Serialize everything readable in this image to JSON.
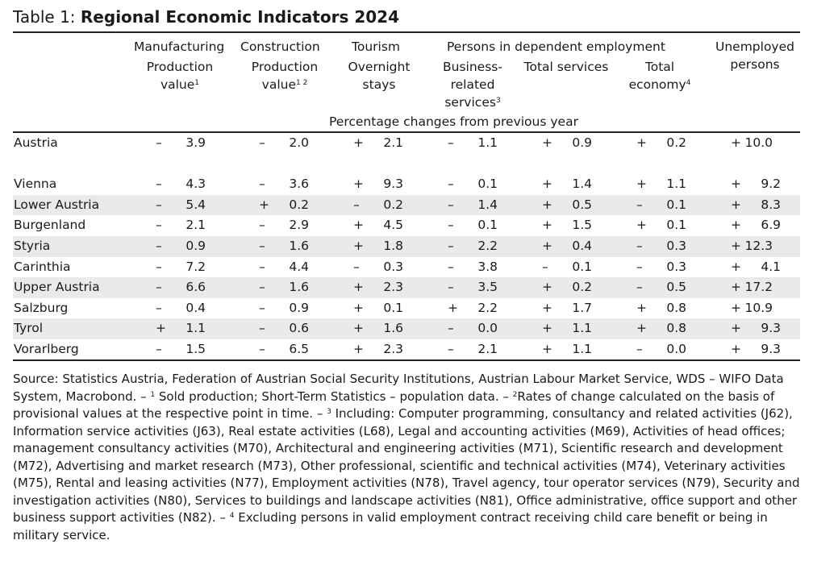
{
  "title": {
    "prefix": "Table 1: ",
    "main": "Regional Economic Indicators 2024"
  },
  "headers": {
    "manufacturing": {
      "group": "Manufacturing",
      "line1": "Production",
      "line2": "value",
      "sup": "1"
    },
    "construction": {
      "group": "Construction",
      "line1": "Production",
      "line2": "value",
      "sup": "1 2"
    },
    "tourism": {
      "group": "Tourism",
      "line1": "Overnight",
      "line2": "stays"
    },
    "employment_group": "Persons in dependent employment",
    "business": {
      "line1": "Business-",
      "line2": "related",
      "line3": "services",
      "sup": "3"
    },
    "total_services": "Total services",
    "total_economy": {
      "line1": "Total",
      "line2": "economy",
      "sup": "4"
    },
    "unemployed": {
      "line1": "Unemployed",
      "line2": "persons"
    },
    "unit": "Percentage changes from previous year"
  },
  "rows": [
    {
      "region": "Austria",
      "values": [
        [
          "–",
          "3.9"
        ],
        [
          "–",
          "2.0"
        ],
        [
          "+",
          "2.1"
        ],
        [
          "–",
          "1.1"
        ],
        [
          "+",
          "0.9"
        ],
        [
          "+",
          "0.2"
        ],
        [
          "+",
          "10.0"
        ]
      ]
    },
    {
      "region": "Vienna",
      "values": [
        [
          "–",
          "4.3"
        ],
        [
          "–",
          "3.6"
        ],
        [
          "+",
          "9.3"
        ],
        [
          "–",
          "0.1"
        ],
        [
          "+",
          "1.4"
        ],
        [
          "+",
          "1.1"
        ],
        [
          "+",
          "9.2"
        ]
      ]
    },
    {
      "region": "Lower Austria",
      "values": [
        [
          "–",
          "5.4"
        ],
        [
          "+",
          "0.2"
        ],
        [
          "–",
          "0.2"
        ],
        [
          "–",
          "1.4"
        ],
        [
          "+",
          "0.5"
        ],
        [
          "–",
          "0.1"
        ],
        [
          "+",
          "8.3"
        ]
      ]
    },
    {
      "region": "Burgenland",
      "values": [
        [
          "–",
          "2.1"
        ],
        [
          "–",
          "2.9"
        ],
        [
          "+",
          "4.5"
        ],
        [
          "–",
          "0.1"
        ],
        [
          "+",
          "1.5"
        ],
        [
          "+",
          "0.1"
        ],
        [
          "+",
          "6.9"
        ]
      ]
    },
    {
      "region": "Styria",
      "values": [
        [
          "–",
          "0.9"
        ],
        [
          "–",
          "1.6"
        ],
        [
          "+",
          "1.8"
        ],
        [
          "–",
          "2.2"
        ],
        [
          "+",
          "0.4"
        ],
        [
          "–",
          "0.3"
        ],
        [
          "+",
          "12.3"
        ]
      ]
    },
    {
      "region": "Carinthia",
      "values": [
        [
          "–",
          "7.2"
        ],
        [
          "–",
          "4.4"
        ],
        [
          "–",
          "0.3"
        ],
        [
          "–",
          "3.8"
        ],
        [
          "–",
          "0.1"
        ],
        [
          "–",
          "0.3"
        ],
        [
          "+",
          "4.1"
        ]
      ]
    },
    {
      "region": "Upper Austria",
      "values": [
        [
          "–",
          "6.6"
        ],
        [
          "–",
          "1.6"
        ],
        [
          "+",
          "2.3"
        ],
        [
          "–",
          "3.5"
        ],
        [
          "+",
          "0.2"
        ],
        [
          "–",
          "0.5"
        ],
        [
          "+",
          "17.2"
        ]
      ]
    },
    {
      "region": "Salzburg",
      "values": [
        [
          "–",
          "0.4"
        ],
        [
          "–",
          "0.9"
        ],
        [
          "+",
          "0.1"
        ],
        [
          "+",
          "2.2"
        ],
        [
          "+",
          "1.7"
        ],
        [
          "+",
          "0.8"
        ],
        [
          "+",
          "10.9"
        ]
      ]
    },
    {
      "region": "Tyrol",
      "values": [
        [
          "+",
          "1.1"
        ],
        [
          "–",
          "0.6"
        ],
        [
          "+",
          "1.6"
        ],
        [
          "–",
          "0.0"
        ],
        [
          "+",
          "1.1"
        ],
        [
          "+",
          "0.8"
        ],
        [
          "+",
          "9.3"
        ]
      ]
    },
    {
      "region": "Vorarlberg",
      "values": [
        [
          "–",
          "1.5"
        ],
        [
          "–",
          "6.5"
        ],
        [
          "+",
          "2.3"
        ],
        [
          "–",
          "2.1"
        ],
        [
          "+",
          "1.1"
        ],
        [
          "–",
          "0.0"
        ],
        [
          "+",
          "9.3"
        ]
      ]
    }
  ],
  "footnote": {
    "part1": "Source: Statistics Austria, Federation of Austrian Social Security Institutions, Austrian Labour Market Service, WDS – WIFO Data System, Macrobond. – ",
    "sup1": "1",
    "part2": " Sold production; Short-Term Statistics – population data. – ",
    "sup2": "2",
    "part3": "Rates of change calculated on the basis of provisional values at the respective point in time. – ",
    "sup3": "3",
    "part4": " Including: Computer programming, consultancy and related activities (J62), Information service activities (J63), Real estate activities (L68), Legal and accounting activities (M69), Activities of head offices; management consultancy activities (M70), Architectural and engineering activities (M71), Scientific research and development (M72), Advertising and market research (M73), Other professional, scientific and technical activities (M74), Veterinary activities (M75), Rental and leasing activities (N77), Employment activities (N78), Travel agency, tour operator services (N79), Security and investigation activities (N80), Services to buildings and landscape activities (N81), Office administrative, office support and other business support activities (N82). – ",
    "sup4": "4",
    "part5": " Excluding persons in valid employment contract receiving child care benefit or being in military service."
  }
}
